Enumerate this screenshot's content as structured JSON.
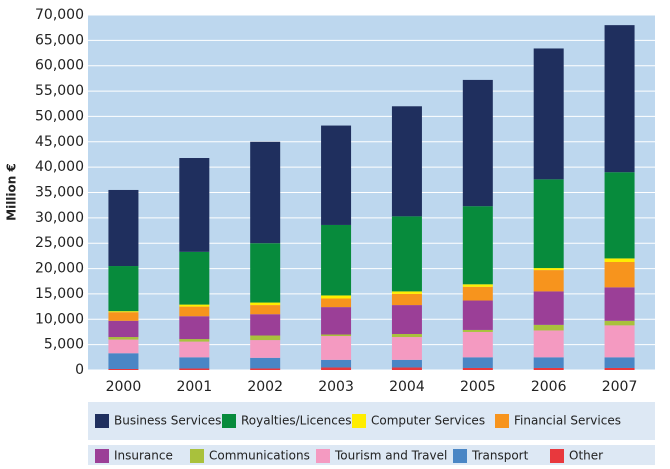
{
  "chart_data": {
    "type": "bar",
    "stacked": true,
    "y_label": "Million €",
    "categories": [
      "2000",
      "2001",
      "2002",
      "2003",
      "2004",
      "2005",
      "2006",
      "2007"
    ],
    "series": [
      {
        "name": "Business Services",
        "color": "#1f2f5e",
        "values": [
          15000,
          18500,
          20000,
          19600,
          21700,
          24900,
          25800,
          29000
        ]
      },
      {
        "name": "Royalties/Licences",
        "color": "#078b3c",
        "values": [
          8900,
          10400,
          11700,
          13900,
          14800,
          15400,
          17500,
          17000
        ]
      },
      {
        "name": "Computer Services",
        "color": "#ffed00",
        "values": [
          200,
          400,
          500,
          600,
          500,
          500,
          400,
          700
        ]
      },
      {
        "name": "Financial Services",
        "color": "#f7941d",
        "values": [
          1700,
          1900,
          1800,
          1700,
          2200,
          2700,
          4200,
          5000
        ]
      },
      {
        "name": "Insurance",
        "color": "#9b3f97",
        "values": [
          3200,
          4500,
          4200,
          5400,
          5700,
          5800,
          6600,
          6600
        ]
      },
      {
        "name": "Communications",
        "color": "#a9c13c",
        "values": [
          500,
          500,
          900,
          300,
          600,
          400,
          1100,
          900
        ]
      },
      {
        "name": "Tourism and Travel",
        "color": "#f49ac1",
        "values": [
          2700,
          3100,
          3500,
          4700,
          4500,
          5000,
          5300,
          6300
        ]
      },
      {
        "name": "Transport",
        "color": "#4a86c5",
        "values": [
          3100,
          2200,
          2100,
          1500,
          1500,
          2100,
          2100,
          2100
        ]
      },
      {
        "name": "Other",
        "color": "#e8383d",
        "values": [
          200,
          300,
          300,
          500,
          500,
          400,
          400,
          400
        ]
      }
    ],
    "ylim": [
      0,
      70000
    ],
    "yticks": [
      0,
      {
        "value": 5000,
        "label": "5,000"
      },
      {
        "value": 10000,
        "label": "10,000"
      },
      {
        "value": 15000,
        "label": "15,000"
      },
      {
        "value": 20000,
        "label": "20,000"
      },
      {
        "value": 25000,
        "label": "25,000"
      },
      {
        "value": 30000,
        "label": "30,000"
      },
      {
        "value": 35000,
        "label": "35,000"
      },
      {
        "value": 40000,
        "label": "40,000"
      },
      {
        "value": 45000,
        "label": "45,000"
      },
      {
        "value": 50000,
        "label": "50,000"
      },
      {
        "value": 55000,
        "label": "55,000"
      },
      {
        "value": 60000,
        "label": "60,000"
      },
      {
        "value": 65000,
        "label": "65,000"
      },
      {
        "value": 70000,
        "label": "70,000"
      }
    ],
    "grid": true
  }
}
